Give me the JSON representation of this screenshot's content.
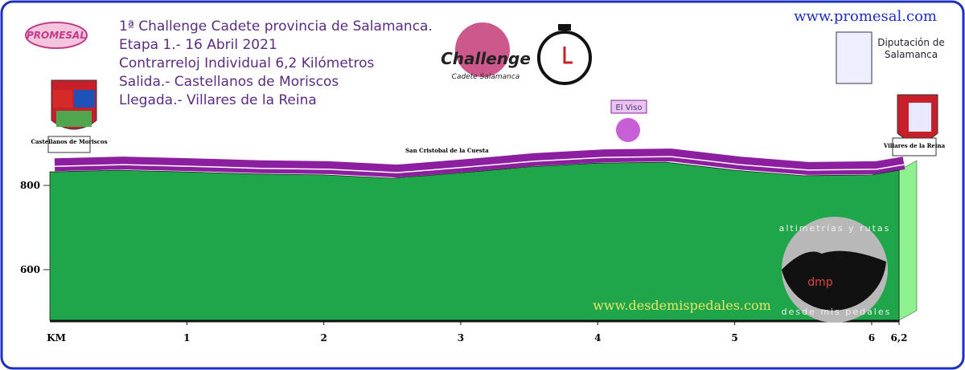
{
  "chart_data": {
    "type": "area",
    "title_lines": [
      "1ª Challenge Cadete provincia de Salamanca.",
      "Etapa 1.- 16 Abril 2021",
      "Contrarreloj Individual 6,2 Kilómetros",
      "Salida.- Castellanos de Moriscos",
      "Llegada.- Villares de la Reina"
    ],
    "x_label": "KM",
    "x": [
      0,
      0.5,
      1,
      1.5,
      2,
      2.5,
      3,
      3.5,
      4,
      4.5,
      5,
      5.5,
      6,
      6.2
    ],
    "values": [
      832,
      836,
      832,
      827,
      825,
      817,
      830,
      844,
      853,
      855,
      836,
      823,
      825,
      836
    ],
    "color": "#1fa64a",
    "road_color": "#8b1fa0",
    "xlim": [
      0,
      6.2
    ],
    "xticks": [
      1,
      2,
      3,
      4,
      5,
      6,
      {
        "value": 6.2,
        "label": "6,2"
      }
    ],
    "ylim": [
      480,
      900
    ],
    "yticks": [
      600,
      800
    ],
    "annotations": [
      "San Cristobal de la Cuesta",
      "El Viso"
    ],
    "start_label": "Castellanos de Moriscos",
    "finish_label": "Villares de la Reina",
    "logos": {
      "promesal": "PROMESAL",
      "web": "www.promesal.com",
      "diputacion": "Diputación de Salamanca",
      "challenge": "Challenge",
      "challenge_sub": "Cadete Salamanca",
      "site": "www.desdemispedales.com",
      "badge_top": "altimetrías y rutas",
      "badge_bottom": "desde mis pedales",
      "badge_mark": "dmp"
    }
  }
}
